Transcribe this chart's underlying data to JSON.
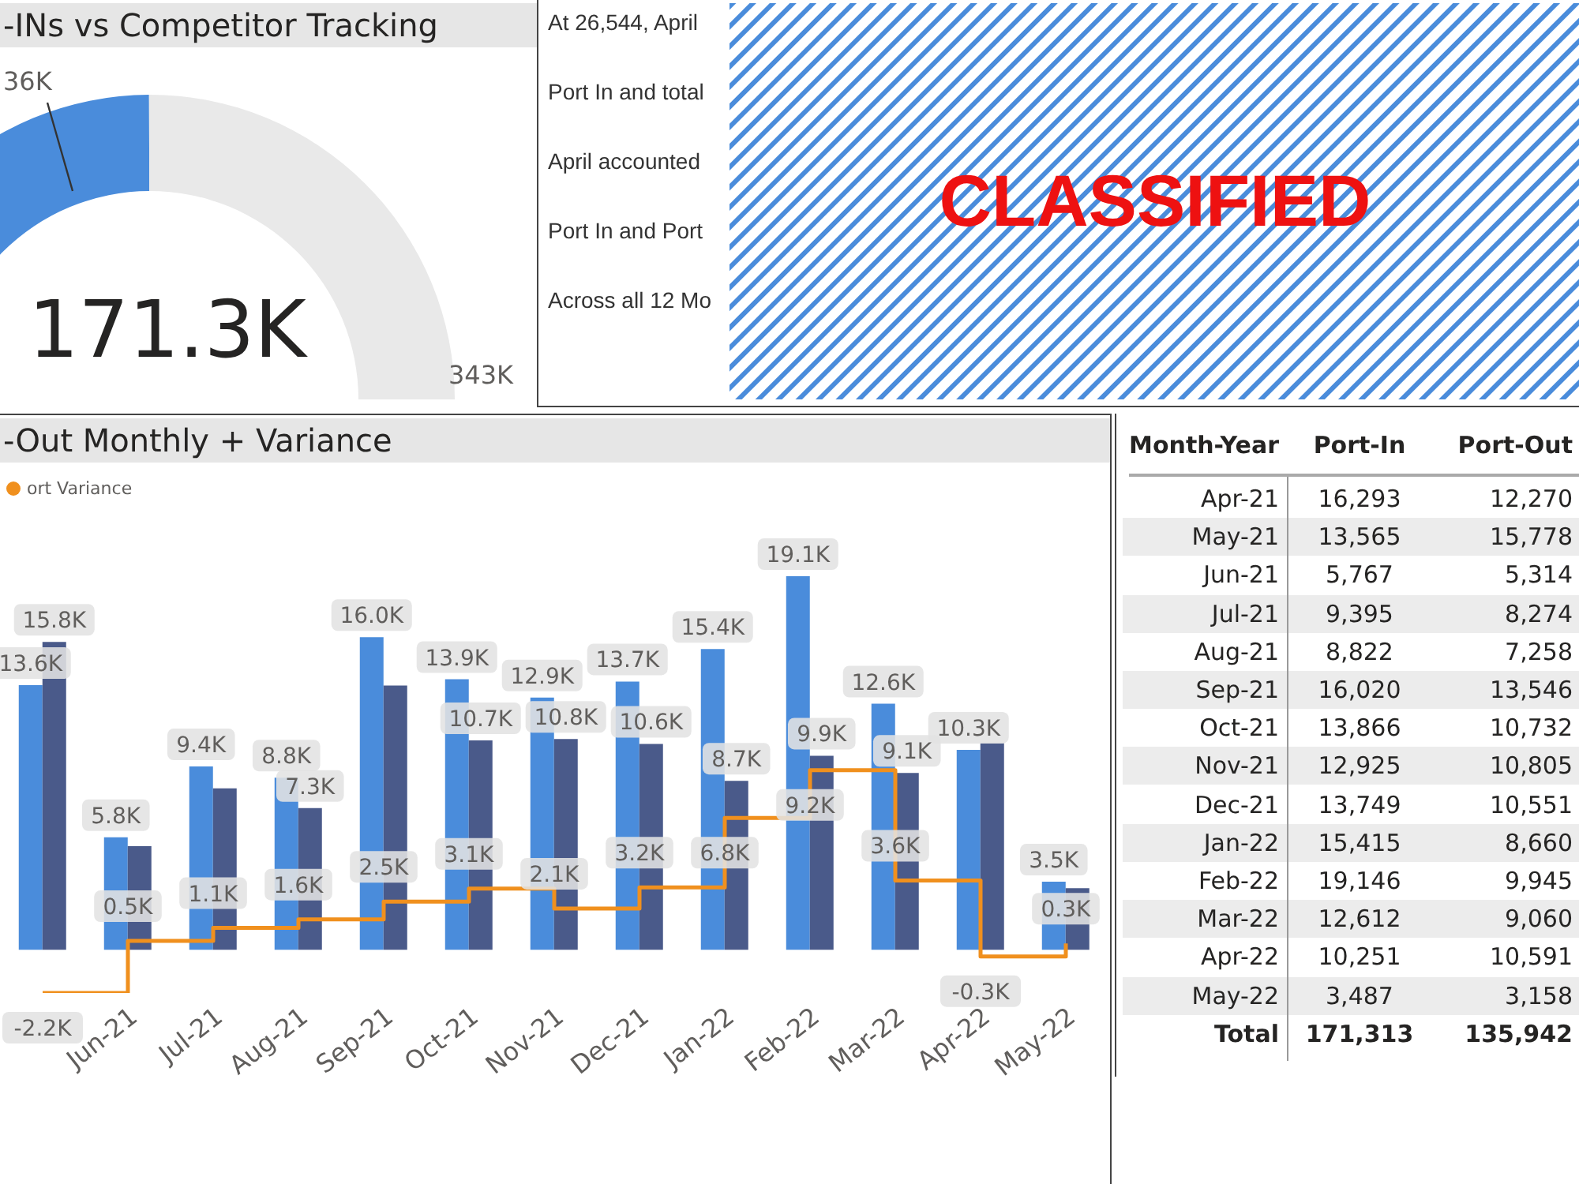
{
  "chart_data": [
    {
      "type": "donut",
      "title": "-INs vs Competitor Tracking",
      "categories": [
        null,
        null
      ],
      "values": [
        49.9,
        50.1
      ],
      "colors": [
        "#4a8cdb",
        "#e9e9e9"
      ],
      "annotations": [
        "36K",
        "171.3K",
        "343K"
      ]
    },
    {
      "type": "other",
      "annotations": [
        "At 26,544, April",
        "Port In and total",
        "April accounted",
        "Port In and Port",
        "Across all 12 Mo",
        "CLASSIFIED"
      ]
    },
    {
      "type": "bar",
      "title": "-Out Monthly + Variance",
      "categories": [
        null,
        "Jun-21",
        "Jul-21",
        "Aug-21",
        "Sep-21",
        "Oct-21",
        "Nov-21",
        "Dec-21",
        "Jan-22",
        "Feb-22",
        "Mar-22",
        "Apr-22",
        "May-22"
      ],
      "series": [
        {
          "color": "#4a8cdb",
          "values": [
            13565,
            5767,
            9395,
            8822,
            16020,
            13866,
            12925,
            13749,
            15415,
            19146,
            12612,
            10251,
            3487
          ],
          "value_labels": [
            "13.6K",
            "5.8K",
            "9.4K",
            "8.8K",
            "16.0K",
            "13.9K",
            "12.9K",
            "13.7K",
            "15.4K",
            "19.1K",
            "12.6K",
            "10.3K",
            "3.5K"
          ]
        },
        {
          "color": "#4a5a8a",
          "values": [
            15778,
            5314,
            8274,
            7258,
            13546,
            10732,
            10805,
            10551,
            8660,
            9945,
            9060,
            10591,
            3158
          ],
          "value_labels": [
            "15.8K",
            null,
            null,
            "7.3K",
            null,
            "10.7K",
            "10.8K",
            "10.6K",
            "8.7K",
            "9.9K",
            "9.1K",
            null,
            null
          ]
        },
        {
          "type": "step",
          "name": "ort Variance",
          "color": "#f0901e",
          "values": [
            -2213,
            453,
            1121,
            1564,
            2474,
            3134,
            2120,
            3198,
            6755,
            9201,
            3552,
            -340,
            329
          ],
          "value_labels": [
            "-2.2K",
            "0.5K",
            "1.1K",
            "1.6K",
            "2.5K",
            "3.1K",
            "2.1K",
            "3.2K",
            "6.8K",
            "9.2K",
            "3.6K",
            "-0.3K",
            "0.3K"
          ]
        }
      ],
      "legend": "top left",
      "tick_labels": "x"
    },
    {
      "type": "other",
      "annotations": [
        "Month-Year",
        "Port-In",
        "Port-Out",
        "Apr-21",
        "16,293",
        "12,270",
        "May-21",
        "13,565",
        "15,778",
        "Jun-21",
        "5,767",
        "5,314",
        "Jul-21",
        "9,395",
        "8,274",
        "Aug-21",
        "8,822",
        "7,258",
        "Sep-21",
        "16,020",
        "13,546",
        "Oct-21",
        "13,866",
        "10,732",
        "Nov-21",
        "12,925",
        "10,805",
        "Dec-21",
        "13,749",
        "10,551",
        "Jan-22",
        "15,415",
        "8,660",
        "Feb-22",
        "19,146",
        "9,945",
        "Mar-22",
        "12,612",
        "9,060",
        "Apr-22",
        "10,251",
        "10,591",
        "May-22",
        "3,487",
        "3,158",
        "Total",
        "171,313",
        "135,942"
      ]
    }
  ]
}
